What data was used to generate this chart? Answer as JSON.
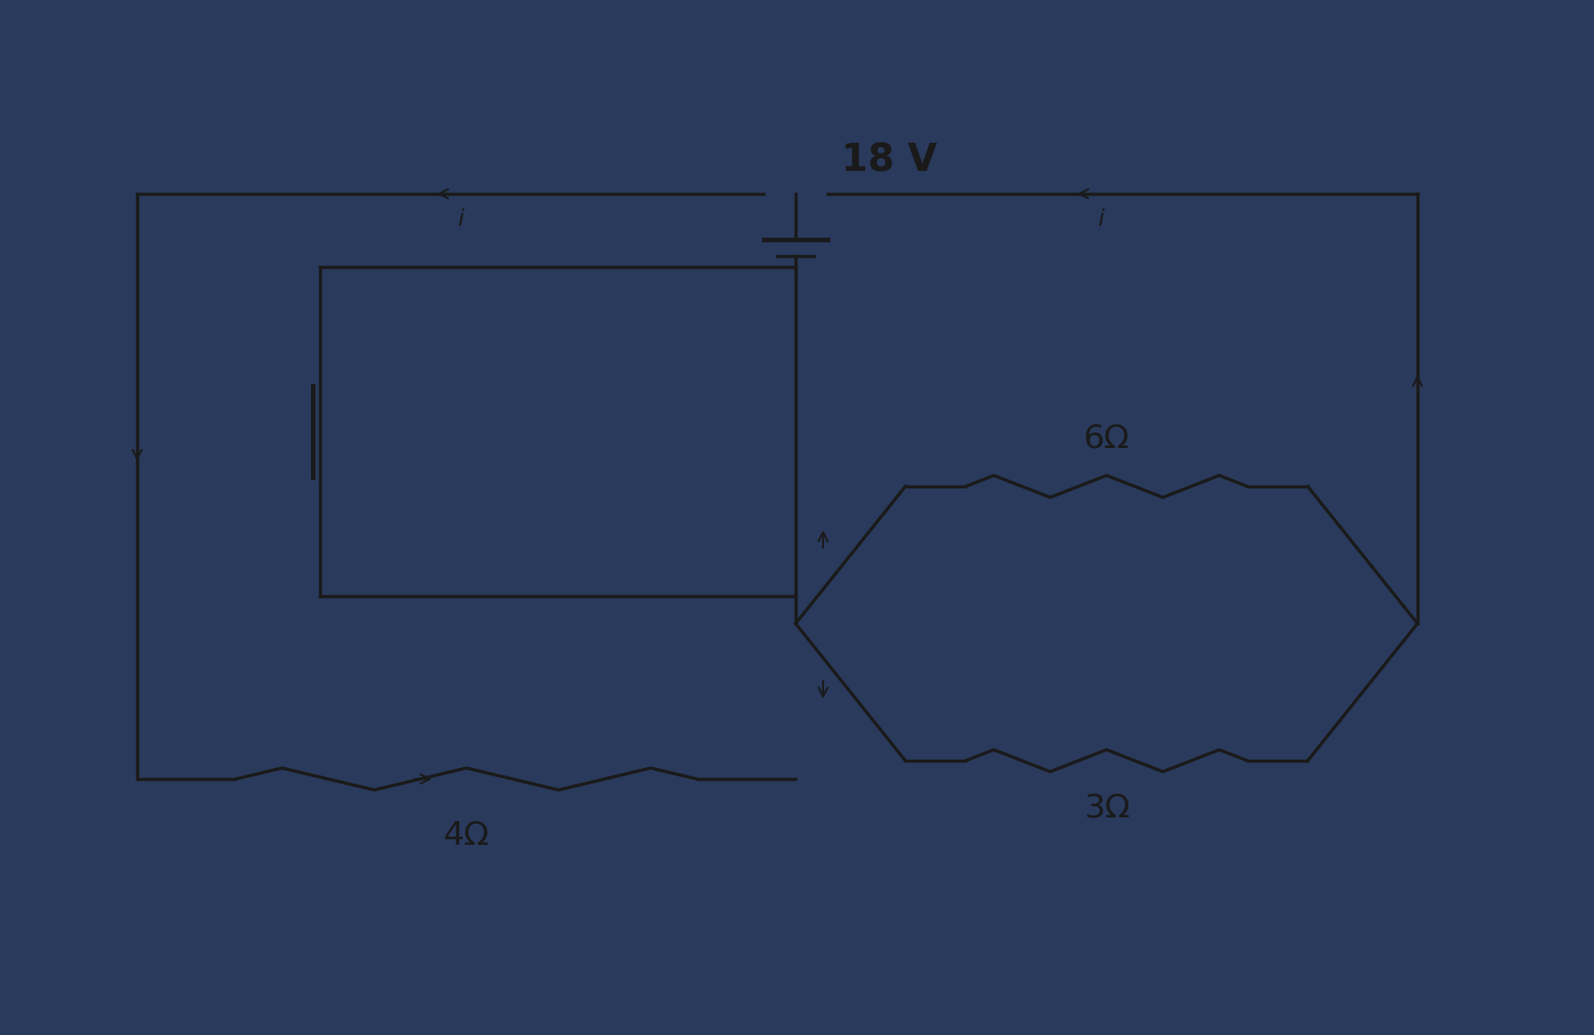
{
  "bg_color": "#2a3a5c",
  "wire_color": "#1a1a1a",
  "wire_lw": 2.5,
  "arrow_color": "#1a1a1a",
  "text_color": "#1a1a1a",
  "resistor_color": "#1a1a1a",
  "battery_voltage": "18 V",
  "res1_label": "4Ω",
  "res2_label": "6Ω",
  "res3_label": "3Ω",
  "font_size_label": 26,
  "font_size_voltage": 30
}
